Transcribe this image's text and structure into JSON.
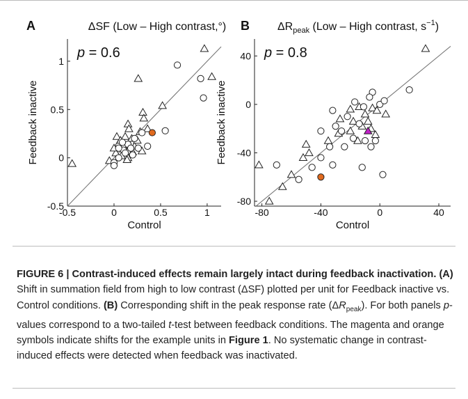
{
  "chart_data": [
    {
      "type": "scatter",
      "panel": "A",
      "title": [
        {
          "text": "ΔSF (Low – High contrast,°)"
        }
      ],
      "annotation": [
        {
          "text": "p",
          "italic": true
        },
        {
          "text": " = 0.6"
        }
      ],
      "xlabel": "Control",
      "ylabel": "Feedback inactive",
      "xlim": [
        -0.5,
        1.15
      ],
      "ylim": [
        -0.5,
        1.23
      ],
      "xticks": [
        -0.5,
        0,
        0.5,
        1
      ],
      "yticks": [
        -0.5,
        0,
        0.5,
        1
      ],
      "series": [
        {
          "marker": "triangle",
          "color": "#ffffff",
          "x": [
            -0.45,
            0.26,
            0.97,
            1.05,
            0.52,
            0.31,
            0.32,
            0.15,
            0.16,
            0.36,
            0.28,
            0.12,
            0.19,
            0.05,
            0.1,
            0.22,
            0.02,
            -0.05,
            0.08,
            0.15,
            0.3,
            0.25,
            0.03,
            0.14,
            0.2,
            0.0,
            0.07
          ],
          "y": [
            -0.06,
            0.82,
            1.13,
            0.84,
            0.54,
            0.47,
            0.41,
            0.35,
            0.3,
            0.3,
            0.27,
            0.22,
            0.2,
            0.15,
            0.12,
            0.12,
            0.05,
            -0.03,
            0.02,
            0.0,
            0.07,
            0.18,
            0.22,
            -0.02,
            0.06,
            0.1,
            0.18
          ]
        },
        {
          "marker": "circle",
          "color": "#ffffff",
          "x": [
            0.68,
            0.93,
            0.96,
            0.55,
            0.3,
            0.36,
            0.22,
            0.15,
            0.1,
            0.05,
            0.0,
            0.0,
            0.12,
            0.18,
            0.05,
            0.09,
            0.26,
            0.2
          ],
          "y": [
            0.96,
            0.82,
            0.62,
            0.28,
            0.26,
            0.12,
            0.2,
            0.14,
            0.08,
            0.1,
            -0.05,
            -0.08,
            0.05,
            0.1,
            0.0,
            0.16,
            0.1,
            0.03
          ]
        },
        {
          "marker": "circle",
          "color": "#e06a1e",
          "x": [
            0.41
          ],
          "y": [
            0.26
          ]
        }
      ]
    },
    {
      "type": "scatter",
      "panel": "B",
      "title": [
        {
          "text": "ΔR"
        },
        {
          "text": "peak",
          "shift": "sub"
        },
        {
          "text": " (Low – High contrast, s"
        },
        {
          "text": "−1",
          "shift": "super"
        },
        {
          "text": ")"
        }
      ],
      "annotation": [
        {
          "text": "p",
          "italic": true
        },
        {
          "text": " = 0.8"
        }
      ],
      "xlabel": "Control",
      "ylabel": "Feedback inactive",
      "xlim": [
        -85,
        48
      ],
      "ylim": [
        -84,
        54
      ],
      "xticks": [
        -80,
        -40,
        0,
        40
      ],
      "yticks": [
        -80,
        -40,
        0,
        40
      ],
      "series": [
        {
          "marker": "triangle",
          "color": "#ffffff",
          "x": [
            31,
            -20,
            -14,
            -27,
            -10,
            -5,
            -2,
            -12,
            -20,
            -28,
            -35,
            -50,
            -48,
            -52,
            -60,
            -66,
            -75,
            -82,
            -18,
            -8,
            -6,
            -3,
            4,
            -15
          ],
          "y": [
            46,
            -4,
            -2,
            -12,
            -8,
            -3,
            -5,
            -18,
            -22,
            -24,
            -30,
            -33,
            -40,
            -44,
            -58,
            -68,
            -80,
            -50,
            -14,
            -14,
            -20,
            -25,
            -8,
            -30
          ]
        },
        {
          "marker": "circle",
          "color": "#ffffff",
          "x": [
            -17,
            -11,
            -5,
            0,
            3,
            -7,
            -22,
            -14,
            -26,
            -30,
            -40,
            -34,
            -40,
            -32,
            -46,
            -55,
            -70,
            -10,
            -3,
            -12,
            2,
            -24,
            -18,
            -32,
            20,
            -6
          ],
          "y": [
            2,
            -2,
            10,
            0,
            3,
            6,
            -10,
            -16,
            -22,
            -18,
            -22,
            -35,
            -44,
            -50,
            -52,
            -62,
            -50,
            -30,
            -30,
            -52,
            -58,
            -35,
            -28,
            -5,
            12,
            -35
          ]
        },
        {
          "marker": "triangle",
          "color": "#c020c8",
          "x": [
            -8
          ],
          "y": [
            -22
          ]
        },
        {
          "marker": "circle",
          "color": "#e06a1e",
          "x": [
            -40
          ],
          "y": [
            -60
          ]
        }
      ]
    }
  ],
  "caption": [
    {
      "text": "FIGURE 6 | Contrast-induced effects remain largely intact during feedback inactivation.",
      "bold": true
    },
    {
      "text": " "
    },
    {
      "text": "(A)",
      "bold": true
    },
    {
      "text": " Shift in summation field from high to low contrast (ΔSF) plotted per unit for Feedback inactive vs. Control conditions. "
    },
    {
      "text": "(B)",
      "bold": true
    },
    {
      "text": " Corresponding shift in the peak response rate (Δ"
    },
    {
      "text": "R",
      "italic": true
    },
    {
      "text": "peak",
      "sub": true
    },
    {
      "text": "). For both panels "
    },
    {
      "text": "p",
      "italic": true
    },
    {
      "text": "-values correspond to a two-tailed "
    },
    {
      "text": "t",
      "italic": true
    },
    {
      "text": "-test between feedback conditions. The magenta and orange symbols indicate shifts for the example units in "
    },
    {
      "text": "Figure 1",
      "bold": true
    },
    {
      "text": ". No systematic change in contrast-induced effects were detected when feedback was inactivated."
    }
  ]
}
